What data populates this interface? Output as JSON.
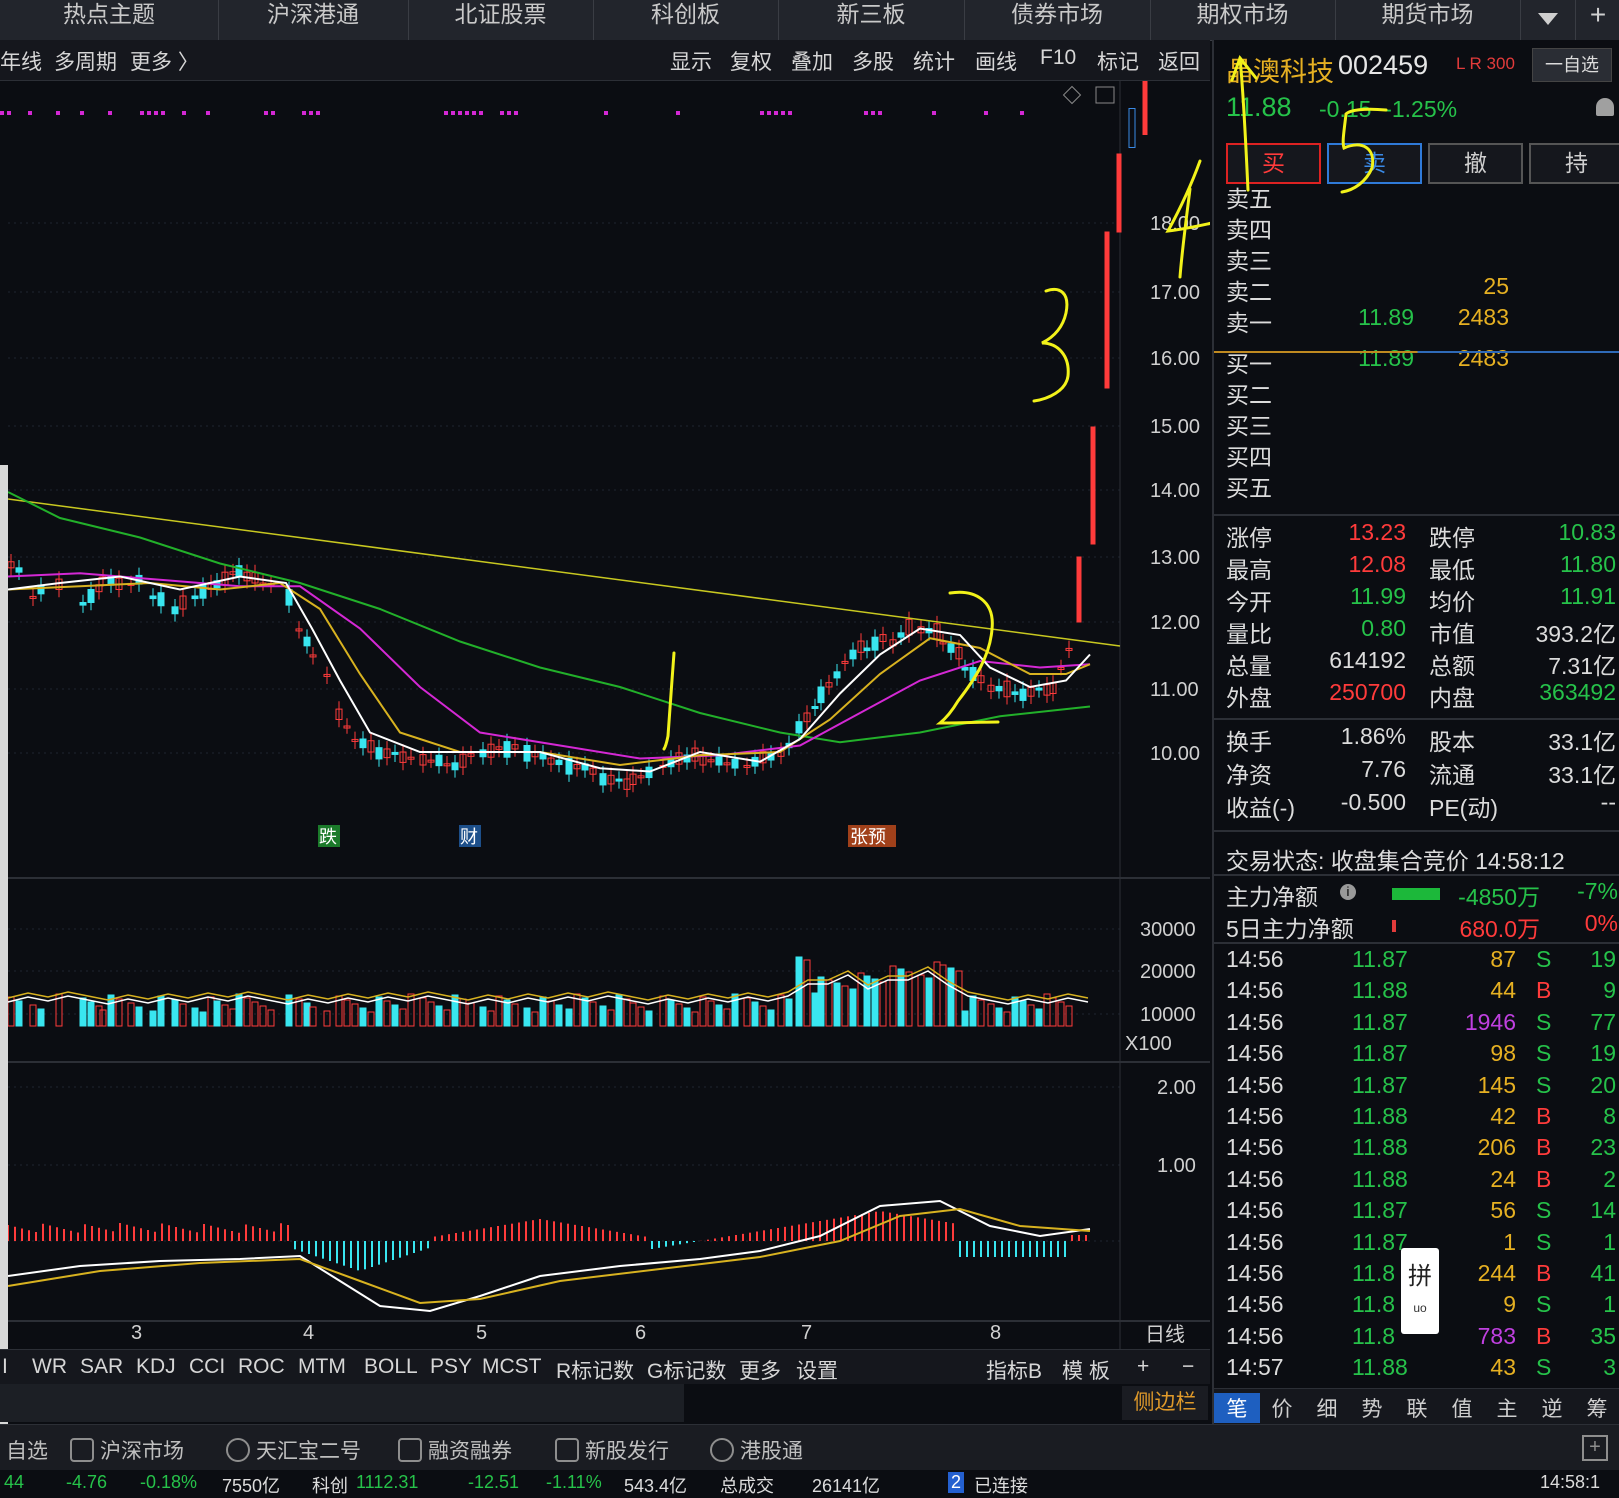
{
  "top_nav": {
    "tabs": [
      "热点主题",
      "沪深港通",
      "北证股票",
      "科创板",
      "新三板",
      "债券市场",
      "期权市场",
      "期货市场"
    ],
    "plus": "+"
  },
  "toolbar": {
    "left": [
      "年线",
      "多周期",
      "更多 〉"
    ],
    "right": [
      "显示",
      "复权",
      "叠加",
      "多股",
      "统计",
      "画线",
      "F10",
      "标记",
      "返回"
    ]
  },
  "chart": {
    "price_axis": [
      "18.00",
      "17.00",
      "16.00",
      "15.00",
      "14.00",
      "13.00",
      "12.00",
      "11.00",
      "10.00"
    ],
    "volume_axis": [
      "30000",
      "20000",
      "10000"
    ],
    "volume_unit": "X100",
    "macd_axis": [
      "2.00",
      "1.00"
    ],
    "x_axis": [
      "3",
      "4",
      "5",
      "6",
      "7",
      "8"
    ],
    "period": "日线",
    "event_markers": [
      "跌",
      "财",
      "张预"
    ],
    "annotations": [
      "1",
      "2",
      "3",
      "4",
      "5"
    ]
  },
  "indicator_bar": {
    "items": [
      "I",
      "WR",
      "SAR",
      "KDJ",
      "CCI",
      "ROC",
      "MTM",
      "BOLL",
      "PSY",
      "MCST",
      "R标记数",
      "G标记数",
      "更多",
      "设置"
    ],
    "right": [
      "指标B",
      "模 板",
      "+",
      "−"
    ]
  },
  "sidebar_button": "侧边栏",
  "bottom_nav": [
    {
      "label": "自选",
      "icon": "star-icon"
    },
    {
      "label": "沪深市场",
      "icon": "bar-chart-icon"
    },
    {
      "label": "天汇宝二号",
      "icon": "coin-icon"
    },
    {
      "label": "融资融券",
      "icon": "grid-icon"
    },
    {
      "label": "新股发行",
      "icon": "bar-chart-icon"
    },
    {
      "label": "港股通",
      "icon": "hk-icon"
    }
  ],
  "ticker": [
    {
      "t": "44",
      "c": "#26c24a"
    },
    {
      "t": "-4.76",
      "c": "#26c24a"
    },
    {
      "t": "-0.18%",
      "c": "#26c24a"
    },
    {
      "t": "7550亿",
      "c": "#dcdcdc"
    },
    {
      "t": "科创",
      "c": "#dcdcdc"
    },
    {
      "t": "1112.31",
      "c": "#26c24a"
    },
    {
      "t": "-12.51",
      "c": "#26c24a"
    },
    {
      "t": "-1.11%",
      "c": "#26c24a"
    },
    {
      "t": "543.4亿",
      "c": "#dcdcdc"
    },
    {
      "t": "总成交",
      "c": "#dcdcdc"
    },
    {
      "t": "26141亿",
      "c": "#dcdcdc"
    },
    {
      "t": "已连接",
      "c": "#dcdcdc"
    },
    {
      "t": "14:58:1",
      "c": "#dcdcdc"
    }
  ],
  "stock": {
    "name": "晶澳科技",
    "code": "002459",
    "tags": "L R 300",
    "watch_button": "一自选",
    "price": "11.88",
    "change": "-0.15",
    "change_pct": "-1.25%",
    "actions": [
      "买",
      "卖",
      "撤",
      "持"
    ],
    "asks": [
      {
        "label": "卖五",
        "price": "",
        "vol": ""
      },
      {
        "label": "卖四",
        "price": "",
        "vol": ""
      },
      {
        "label": "卖三",
        "price": "",
        "vol": ""
      },
      {
        "label": "卖二",
        "price": "",
        "vol": "25"
      },
      {
        "label": "卖一",
        "price": "11.89",
        "vol": "2483"
      }
    ],
    "bids": [
      {
        "label": "买一",
        "price": "11.89",
        "vol": "2483"
      },
      {
        "label": "买二",
        "price": "",
        "vol": ""
      },
      {
        "label": "买三",
        "price": "",
        "vol": ""
      },
      {
        "label": "买四",
        "price": "",
        "vol": ""
      },
      {
        "label": "买五",
        "price": "",
        "vol": ""
      }
    ],
    "stats": [
      {
        "l1": "涨停",
        "v1": "13.23",
        "c1": "#ff3b3b",
        "l2": "跌停",
        "v2": "10.83",
        "c2": "#26c24a"
      },
      {
        "l1": "最高",
        "v1": "12.08",
        "c1": "#ff3b3b",
        "l2": "最低",
        "v2": "11.80",
        "c2": "#26c24a"
      },
      {
        "l1": "今开",
        "v1": "11.99",
        "c1": "#26c24a",
        "l2": "均价",
        "v2": "11.91",
        "c2": "#26c24a"
      },
      {
        "l1": "量比",
        "v1": "0.80",
        "c1": "#26c24a",
        "l2": "市值",
        "v2": "393.2亿",
        "c2": "#dcdcdc"
      },
      {
        "l1": "总量",
        "v1": "614192",
        "c1": "#dcdcdc",
        "l2": "总额",
        "v2": "7.31亿",
        "c2": "#dcdcdc"
      },
      {
        "l1": "外盘",
        "v1": "250700",
        "c1": "#ff3b3b",
        "l2": "内盘",
        "v2": "363492",
        "c2": "#26c24a"
      }
    ],
    "stats2": [
      {
        "l1": "换手",
        "v1": "1.86%",
        "l2": "股本",
        "v2": "33.1亿"
      },
      {
        "l1": "净资",
        "v1": "7.76",
        "l2": "流通",
        "v2": "33.1亿"
      },
      {
        "l1": "收益(-)",
        "v1": "-0.500",
        "l2": "PE(动)",
        "v2": "--"
      }
    ],
    "status": "交易状态: 收盘集合竞价 14:58:12",
    "main_flow": {
      "label": "主力净额",
      "value": "-4850万",
      "pct": "-7%"
    },
    "flow5": {
      "label": "5日主力净额",
      "value": "680.0万",
      "pct": "0%"
    },
    "ticks": [
      {
        "time": "14:56",
        "price": "11.87",
        "vol": "87",
        "vc": "#e6b022",
        "side": "S",
        "n": "19"
      },
      {
        "time": "14:56",
        "price": "11.88",
        "vol": "44",
        "vc": "#e6b022",
        "side": "B",
        "n": "9"
      },
      {
        "time": "14:56",
        "price": "11.87",
        "vol": "1946",
        "vc": "#c040e0",
        "side": "S",
        "n": "77"
      },
      {
        "time": "14:56",
        "price": "11.87",
        "vol": "98",
        "vc": "#e6b022",
        "side": "S",
        "n": "19"
      },
      {
        "time": "14:56",
        "price": "11.87",
        "vol": "145",
        "vc": "#e6b022",
        "side": "S",
        "n": "20"
      },
      {
        "time": "14:56",
        "price": "11.88",
        "vol": "42",
        "vc": "#e6b022",
        "side": "B",
        "n": "8"
      },
      {
        "time": "14:56",
        "price": "11.88",
        "vol": "206",
        "vc": "#e6b022",
        "side": "B",
        "n": "23"
      },
      {
        "time": "14:56",
        "price": "11.88",
        "vol": "24",
        "vc": "#e6b022",
        "side": "B",
        "n": "2"
      },
      {
        "time": "14:56",
        "price": "11.87",
        "vol": "56",
        "vc": "#e6b022",
        "side": "S",
        "n": "14"
      },
      {
        "time": "14:56",
        "price": "11.87",
        "vol": "1",
        "vc": "#e6b022",
        "side": "S",
        "n": "1"
      },
      {
        "time": "14:56",
        "price": "11.8",
        "vol": "244",
        "vc": "#e6b022",
        "side": "B",
        "n": "41"
      },
      {
        "time": "14:56",
        "price": "11.8",
        "vol": "9",
        "vc": "#e6b022",
        "side": "S",
        "n": "1"
      },
      {
        "time": "14:56",
        "price": "11.8",
        "vol": "783",
        "vc": "#c040e0",
        "side": "B",
        "n": "35"
      },
      {
        "time": "14:57",
        "price": "11.88",
        "vol": "43",
        "vc": "#e6b022",
        "side": "S",
        "n": "3"
      }
    ],
    "popup_char": "拼",
    "sub_tabs": [
      "笔",
      "价",
      "细",
      "势",
      "联",
      "值",
      "主",
      "逆",
      "筹"
    ]
  }
}
